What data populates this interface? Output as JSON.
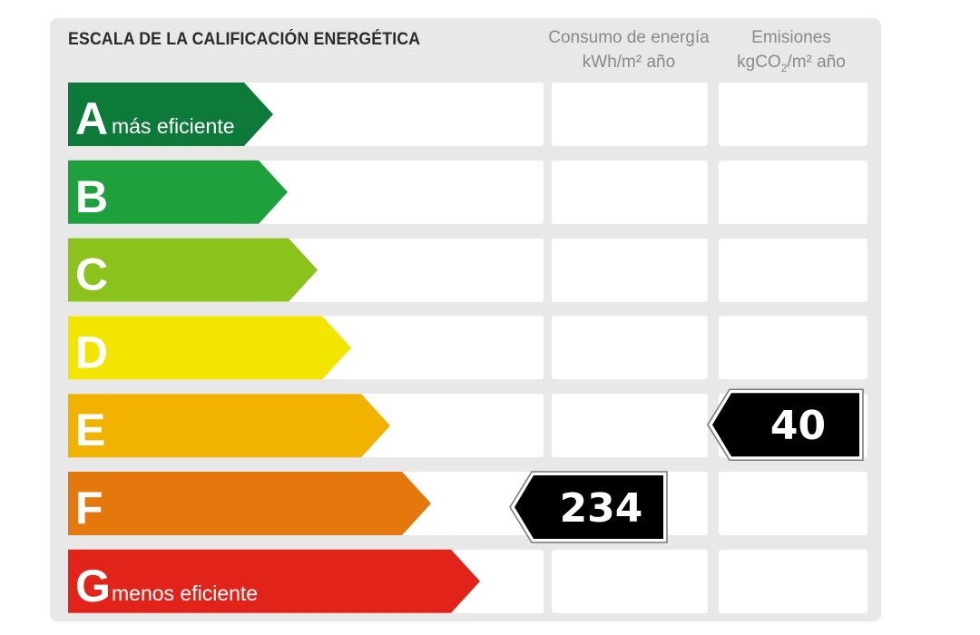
{
  "chart_data": {
    "type": "bar",
    "title": "ESCALA DE LA CALIFICACIÓN ENERGÉTICA",
    "categories": [
      "A",
      "B",
      "C",
      "D",
      "E",
      "F",
      "G"
    ],
    "category_notes": {
      "A": "más eficiente",
      "G": "menos eficiente"
    },
    "colors": [
      "#0e7a3a",
      "#1ea13c",
      "#8cc21c",
      "#f2e600",
      "#f2b300",
      "#e5780c",
      "#e2231a"
    ],
    "columns": [
      {
        "line1": "Consumo de energía",
        "line2": "kWh/m² año"
      },
      {
        "line1": "Emisiones",
        "line2_pre": "kgCO",
        "line2_sub": "2",
        "line2_post": "/m² año"
      }
    ],
    "ratings": [
      {
        "column": "Consumo de energía",
        "category": "F",
        "value": 234,
        "label": "234"
      },
      {
        "column": "Emisiones",
        "category": "E",
        "value": 40,
        "label": "40"
      }
    ],
    "grid": true,
    "legend": "none"
  }
}
